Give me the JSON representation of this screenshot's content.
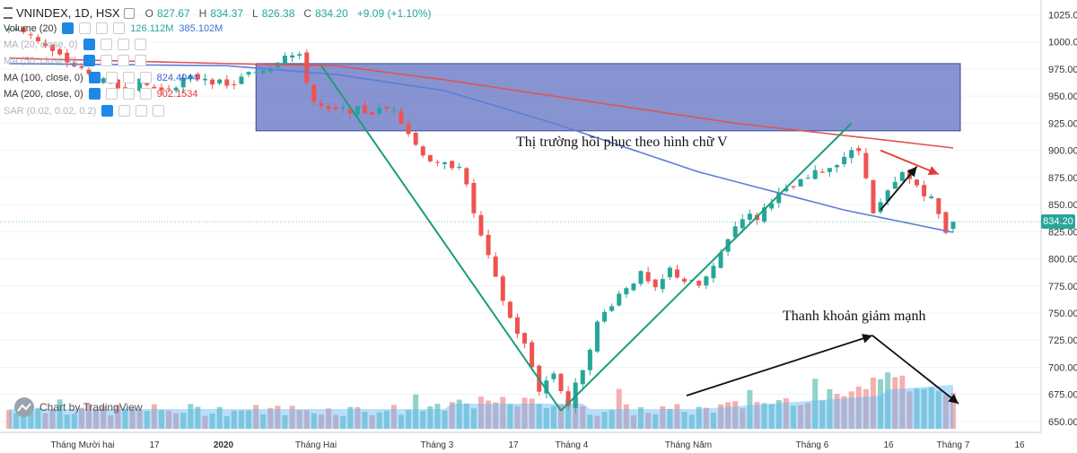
{
  "header": {
    "symbol": "VNINDEX, 1D, HSX",
    "open_label": "O",
    "open": "827.67",
    "high_label": "H",
    "high": "834.37",
    "low_label": "L",
    "low": "826.38",
    "close_label": "C",
    "close": "834.20",
    "change": "+9.09 (+1.10%)"
  },
  "indicators": [
    {
      "label": "Volume (20)",
      "values": [
        "126.112M",
        "385.102M"
      ],
      "faint": false
    },
    {
      "label": "MA (20, close, 0)",
      "values": [],
      "faint": true
    },
    {
      "label": "MA (50, close, 0)",
      "values": [],
      "faint": true
    },
    {
      "label": "MA (100, close, 0)",
      "values": [
        "824.4044"
      ],
      "faint": false,
      "color": "#3b5bcc"
    },
    {
      "label": "MA (200, close, 0)",
      "values": [
        "902.1534"
      ],
      "faint": false,
      "color": "#e53935"
    },
    {
      "label": "SAR (0.02, 0.02, 0.2)",
      "values": [],
      "faint": true
    }
  ],
  "watermark": "Chart by TradingView",
  "last_price_label": "834.20",
  "annotations": {
    "v_shape": "Thị trường hồi phục theo hình chữ V",
    "liquidity": "Thanh khoản giảm mạnh"
  },
  "colors": {
    "up": "#26a69a",
    "down": "#ef5350",
    "ma100": "#5b7fd6",
    "ma200": "#e05555",
    "zone": "#3f51b5",
    "trendline": "#1a9e7a",
    "volume_ma": "#64b5f6"
  },
  "chart_data": {
    "type": "candlestick",
    "y_axis": {
      "range": [
        640,
        1032
      ],
      "ticks": [
        1025.0,
        1000.0,
        975.0,
        950.0,
        925.0,
        900.0,
        875.0,
        850.0,
        825.0,
        800.0,
        775.0,
        750.0,
        725.0,
        700.0,
        675.0,
        650.0
      ]
    },
    "x_axis": {
      "ticks": [
        "Tháng Mười hai",
        "17",
        "2020",
        "Tháng Hai",
        "Tháng 3",
        "17",
        "Tháng 4",
        "Tháng Năm",
        "Tháng 6",
        "16",
        "Tháng 7",
        "16"
      ]
    },
    "price_anchors": [
      {
        "i": 0,
        "v": 1012
      },
      {
        "i": 3,
        "v": 1008
      },
      {
        "i": 6,
        "v": 990
      },
      {
        "i": 9,
        "v": 978
      },
      {
        "i": 12,
        "v": 965
      },
      {
        "i": 15,
        "v": 958
      },
      {
        "i": 18,
        "v": 962
      },
      {
        "i": 21,
        "v": 955
      },
      {
        "i": 24,
        "v": 965
      },
      {
        "i": 27,
        "v": 968
      },
      {
        "i": 30,
        "v": 958
      },
      {
        "i": 33,
        "v": 970
      },
      {
        "i": 36,
        "v": 978
      },
      {
        "i": 38,
        "v": 990
      },
      {
        "i": 40,
        "v": 985
      },
      {
        "i": 42,
        "v": 945
      },
      {
        "i": 44,
        "v": 935
      },
      {
        "i": 47,
        "v": 938
      },
      {
        "i": 50,
        "v": 935
      },
      {
        "i": 53,
        "v": 940
      },
      {
        "i": 56,
        "v": 905
      },
      {
        "i": 59,
        "v": 885
      },
      {
        "i": 62,
        "v": 888
      },
      {
        "i": 65,
        "v": 820
      },
      {
        "i": 67,
        "v": 780
      },
      {
        "i": 69,
        "v": 745
      },
      {
        "i": 71,
        "v": 720
      },
      {
        "i": 73,
        "v": 680
      },
      {
        "i": 75,
        "v": 695
      },
      {
        "i": 77,
        "v": 665
      },
      {
        "i": 79,
        "v": 700
      },
      {
        "i": 81,
        "v": 740
      },
      {
        "i": 83,
        "v": 760
      },
      {
        "i": 85,
        "v": 775
      },
      {
        "i": 87,
        "v": 785
      },
      {
        "i": 89,
        "v": 770
      },
      {
        "i": 91,
        "v": 790
      },
      {
        "i": 93,
        "v": 780
      },
      {
        "i": 95,
        "v": 775
      },
      {
        "i": 97,
        "v": 790
      },
      {
        "i": 99,
        "v": 820
      },
      {
        "i": 101,
        "v": 840
      },
      {
        "i": 103,
        "v": 838
      },
      {
        "i": 105,
        "v": 855
      },
      {
        "i": 107,
        "v": 862
      },
      {
        "i": 109,
        "v": 870
      },
      {
        "i": 111,
        "v": 878
      },
      {
        "i": 113,
        "v": 885
      },
      {
        "i": 115,
        "v": 895
      },
      {
        "i": 117,
        "v": 900
      },
      {
        "i": 118,
        "v": 878
      },
      {
        "i": 119,
        "v": 840
      },
      {
        "i": 121,
        "v": 860
      },
      {
        "i": 123,
        "v": 878
      },
      {
        "i": 125,
        "v": 868
      },
      {
        "i": 127,
        "v": 855
      },
      {
        "i": 129,
        "v": 826
      },
      {
        "i": 130,
        "v": 834.2
      }
    ],
    "count": 131,
    "ma100": [
      {
        "i": 0,
        "v": 980
      },
      {
        "i": 30,
        "v": 978
      },
      {
        "i": 45,
        "v": 970
      },
      {
        "i": 60,
        "v": 955
      },
      {
        "i": 75,
        "v": 925
      },
      {
        "i": 95,
        "v": 880
      },
      {
        "i": 115,
        "v": 845
      },
      {
        "i": 130,
        "v": 824.4
      }
    ],
    "ma200": [
      {
        "i": 0,
        "v": 985
      },
      {
        "i": 30,
        "v": 980
      },
      {
        "i": 45,
        "v": 978
      },
      {
        "i": 60,
        "v": 965
      },
      {
        "i": 80,
        "v": 945
      },
      {
        "i": 100,
        "v": 925
      },
      {
        "i": 120,
        "v": 910
      },
      {
        "i": 130,
        "v": 902.2
      }
    ],
    "zone": {
      "y_top": 980,
      "y_bottom": 918,
      "i_start": 35,
      "i_end": 130
    },
    "trendlines": [
      {
        "from": {
          "i": 43,
          "v": 978
        },
        "to": {
          "i": 76,
          "v": 660
        }
      },
      {
        "from": {
          "i": 76,
          "v": 660
        },
        "to": {
          "i": 116,
          "v": 925
        }
      }
    ]
  }
}
